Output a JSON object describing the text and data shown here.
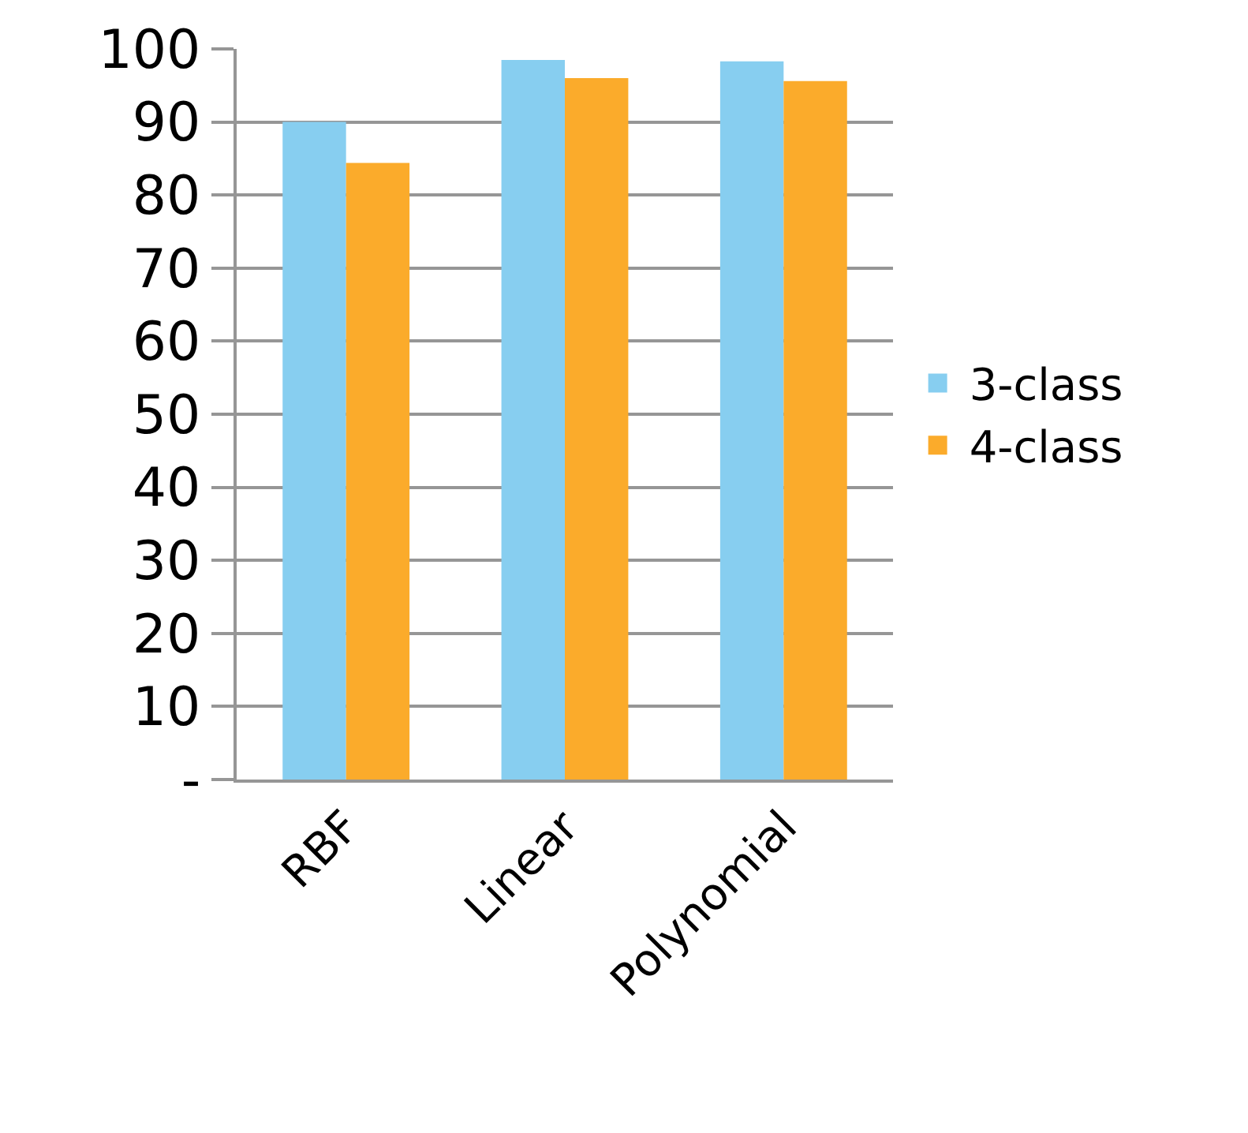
{
  "chart_data": {
    "type": "bar",
    "categories": [
      "RBF",
      "Linear",
      "Polynomial"
    ],
    "series": [
      {
        "name": "3-class",
        "color": "#87cef0",
        "values": [
          90.0,
          98.5,
          98.3
        ]
      },
      {
        "name": "4-class",
        "color": "#fbab2b",
        "values": [
          84.4,
          96.0,
          95.6
        ]
      }
    ],
    "ylim": [
      0,
      100
    ],
    "yticks": [
      {
        "value": 0,
        "label": "-"
      },
      10,
      20,
      30,
      40,
      50,
      60,
      70,
      80,
      90,
      100
    ],
    "grid": "y",
    "legend": "right"
  }
}
